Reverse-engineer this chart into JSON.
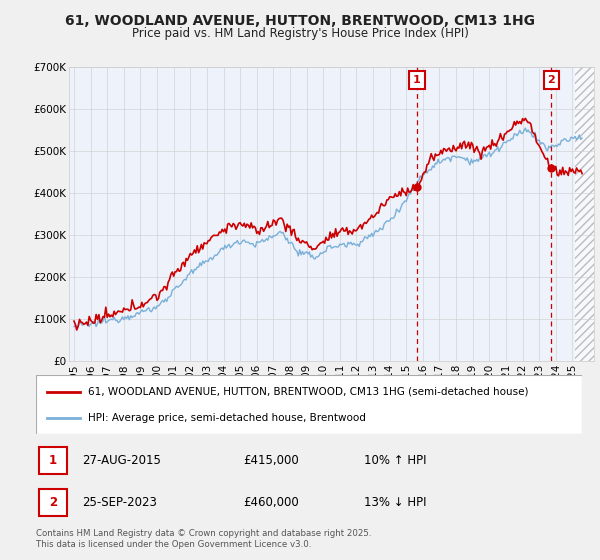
{
  "title_line1": "61, WOODLAND AVENUE, HUTTON, BRENTWOOD, CM13 1HG",
  "title_line2": "Price paid vs. HM Land Registry's House Price Index (HPI)",
  "legend_line1": "61, WOODLAND AVENUE, HUTTON, BRENTWOOD, CM13 1HG (semi-detached house)",
  "legend_line2": "HPI: Average price, semi-detached house, Brentwood",
  "footer": "Contains HM Land Registry data © Crown copyright and database right 2025.\nThis data is licensed under the Open Government Licence v3.0.",
  "sale1_label": "1",
  "sale1_date": "27-AUG-2015",
  "sale1_price": "£415,000",
  "sale1_hpi": "10% ↑ HPI",
  "sale2_label": "2",
  "sale2_date": "25-SEP-2023",
  "sale2_price": "£460,000",
  "sale2_hpi": "13% ↓ HPI",
  "property_color": "#cc0000",
  "hpi_color": "#7ab0d8",
  "fig_bg_color": "#f0f0f0",
  "plot_bg_color": "#eef2fb",
  "ylim": [
    0,
    700000
  ],
  "yticks": [
    0,
    100000,
    200000,
    300000,
    400000,
    500000,
    600000,
    700000
  ],
  "xlim_left": 1994.7,
  "xlim_right": 2026.3,
  "sale1_x": 2015.65,
  "sale1_y": 415000,
  "sale2_x": 2023.73,
  "sale2_y": 460000,
  "hatch_start": 2025.17,
  "hatch_end": 2026.3
}
